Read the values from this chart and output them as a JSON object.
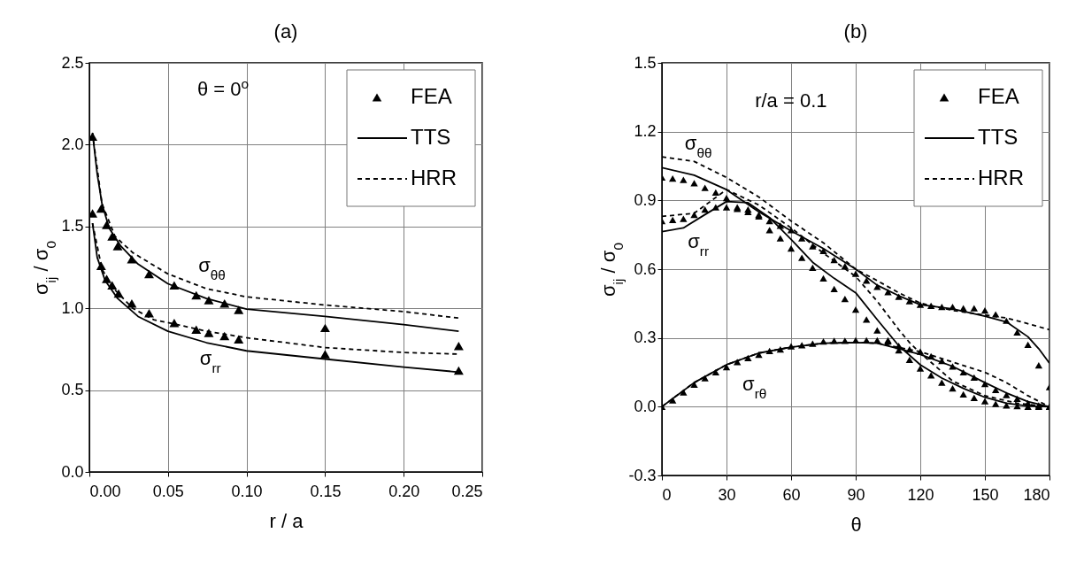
{
  "chart_data": [
    {
      "type": "line",
      "title": "(a)",
      "xlabel": "r / a",
      "ylabel": "σ$_{ij}$ / σ$_{0}$",
      "xlim": [
        0,
        0.25
      ],
      "ylim": [
        0,
        2.5
      ],
      "xticks": [
        {
          "value": 0,
          "label": "0.00"
        },
        {
          "value": 0.05,
          "label": "0.05"
        },
        {
          "value": 0.1,
          "label": "0.10"
        },
        {
          "value": 0.15,
          "label": "0.15"
        },
        {
          "value": 0.2,
          "label": "0.20"
        },
        {
          "value": 0.25,
          "label": "0.25"
        }
      ],
      "yticks": [
        {
          "value": 0,
          "label": "0.0"
        },
        0.5,
        {
          "value": 1,
          "label": "1.0"
        },
        1.5,
        {
          "value": 2,
          "label": "2.0"
        },
        2.5
      ],
      "grid": true,
      "legend": "top right",
      "annotations": [
        "θ = 0$^{o}$",
        "σ$_{θθ}$",
        "σ$_{rr}$"
      ],
      "series": [
        {
          "type": "scatter",
          "name": "FEA",
          "color": "#000000",
          "marker": "triangle",
          "x": [
            0.002,
            0.0075,
            0.011,
            0.0145,
            0.018,
            0.027,
            0.038,
            0.054,
            0.068,
            0.076,
            0.086,
            0.095,
            0.15,
            0.235,
            0.002,
            0.0075,
            0.011,
            0.0145,
            0.0186,
            0.027,
            0.038,
            0.054,
            0.068,
            0.076,
            0.086,
            0.095,
            0.15,
            0.235
          ],
          "values": [
            2.05,
            1.61,
            1.51,
            1.44,
            1.38,
            1.3,
            1.21,
            1.14,
            1.08,
            1.05,
            1.03,
            0.99,
            0.88,
            0.77,
            1.58,
            1.26,
            1.18,
            1.14,
            1.09,
            1.03,
            0.97,
            0.91,
            0.87,
            0.85,
            0.83,
            0.81,
            0.72,
            0.62
          ]
        },
        {
          "name": "TTS",
          "color": "#000000",
          "line_style": "solid",
          "x": [
            0.002,
            0.005,
            0.008,
            0.0126,
            0.02,
            0.031,
            0.05,
            0.0745,
            0.1,
            0.15,
            0.2,
            0.235
          ],
          "values": [
            2.07,
            1.82,
            1.64,
            1.49,
            1.38,
            1.27,
            1.15,
            1.06,
            0.995,
            0.95,
            0.9,
            0.86
          ]
        },
        {
          "name": "HRR",
          "color": "#000000",
          "line_style": "dashed",
          "x": [
            0.002,
            0.008,
            0.0163,
            0.0276,
            0.05,
            0.0745,
            0.1,
            0.15,
            0.2,
            0.235
          ],
          "values": [
            2.07,
            1.64,
            1.44,
            1.34,
            1.21,
            1.12,
            1.07,
            1.02,
            0.98,
            0.94
          ]
        },
        {
          "color": "#000000",
          "line_style": "solid",
          "x": [
            0.002,
            0.005,
            0.01,
            0.018,
            0.031,
            0.05,
            0.0745,
            0.1,
            0.15,
            0.2,
            0.235
          ],
          "values": [
            1.52,
            1.31,
            1.17,
            1.06,
            0.95,
            0.86,
            0.79,
            0.74,
            0.69,
            0.64,
            0.61
          ]
        },
        {
          "color": "#000000",
          "line_style": "dashed",
          "x": [
            0.002,
            0.008,
            0.0145,
            0.0276,
            0.041,
            0.056,
            0.0745,
            0.1,
            0.15,
            0.2,
            0.235
          ],
          "values": [
            1.52,
            1.24,
            1.13,
            1.0,
            0.93,
            0.9,
            0.86,
            0.82,
            0.76,
            0.73,
            0.72
          ]
        }
      ]
    },
    {
      "type": "line",
      "title": "(b)",
      "xlabel": "θ",
      "ylabel": "σ$_{ij}$ / σ$_{0}$",
      "xlim": [
        0,
        180
      ],
      "ylim": [
        -0.3,
        1.5
      ],
      "xticks": [
        0,
        30,
        60,
        90,
        120,
        150,
        180
      ],
      "yticks": [
        -0.3,
        {
          "value": 0,
          "label": "0.0"
        },
        0.3,
        0.6,
        0.9,
        1.2,
        1.5
      ],
      "grid": true,
      "legend": "top right",
      "x": [
        0,
        5,
        10,
        15,
        20,
        25,
        30,
        35,
        40,
        45,
        50,
        55,
        60,
        65,
        70,
        75,
        80,
        85,
        90,
        95,
        100,
        105,
        110,
        115,
        120,
        125,
        130,
        135,
        140,
        145,
        150,
        155,
        160,
        165,
        170,
        175,
        180
      ],
      "annotations": [
        "r/a = 0.1",
        "σ$_{θθ}$",
        "σ$_{rr}$",
        "σ$_{rθ}$"
      ],
      "series": [
        {
          "type": "scatter",
          "name": "FEA",
          "color": "#000000",
          "marker": "triangle",
          "values": [
            1.0,
            0.995,
            0.99,
            0.975,
            0.955,
            0.935,
            0.91,
            0.87,
            0.86,
            0.83,
            0.77,
            0.735,
            0.69,
            0.65,
            0.606,
            0.56,
            0.514,
            0.47,
            0.424,
            0.38,
            0.333,
            0.29,
            0.246,
            0.205,
            0.167,
            0.137,
            0.105,
            0.08,
            0.054,
            0.038,
            0.024,
            0.012,
            0.006,
            0.003,
            0,
            0,
            0
          ]
        },
        {
          "type": "scatter",
          "color": "#000000",
          "marker": "triangle",
          "values": [
            0.81,
            0.815,
            0.82,
            0.837,
            0.86,
            0.87,
            0.87,
            0.863,
            0.85,
            0.837,
            0.81,
            0.79,
            0.77,
            0.735,
            0.7,
            0.68,
            0.64,
            0.613,
            0.58,
            0.55,
            0.523,
            0.5,
            0.48,
            0.46,
            0.445,
            0.44,
            0.435,
            0.435,
            0.43,
            0.43,
            0.42,
            0.403,
            0.375,
            0.324,
            0.27,
            0.18,
            0.086
          ]
        },
        {
          "type": "scatter",
          "color": "#000000",
          "marker": "triangle",
          "values": [
            0,
            0.028,
            0.063,
            0.096,
            0.124,
            0.15,
            0.173,
            0.195,
            0.212,
            0.227,
            0.243,
            0.25,
            0.263,
            0.268,
            0.275,
            0.285,
            0.288,
            0.288,
            0.29,
            0.29,
            0.29,
            0.285,
            0.265,
            0.25,
            0.24,
            0.22,
            0.2,
            0.176,
            0.15,
            0.127,
            0.099,
            0.073,
            0.051,
            0.035,
            0.015,
            0.006,
            0
          ]
        },
        {
          "name": "TTS",
          "color": "#000000",
          "line_style": "solid",
          "x": [
            0,
            15,
            30,
            45,
            60,
            75,
            90,
            100,
            110,
            120,
            135,
            150,
            160,
            170,
            175,
            180
          ],
          "values": [
            1.043,
            1.01,
            0.947,
            0.85,
            0.767,
            0.69,
            0.6,
            0.53,
            0.484,
            0.445,
            0.427,
            0.395,
            0.37,
            0.305,
            0.253,
            0.19
          ]
        },
        {
          "name": "HRR",
          "color": "#000000",
          "line_style": "dashed",
          "x": [
            0,
            15,
            30,
            45,
            60,
            75,
            90,
            100,
            110,
            120,
            135,
            150,
            160,
            170,
            180
          ],
          "values": [
            1.09,
            1.07,
            1.0,
            0.915,
            0.81,
            0.715,
            0.6,
            0.55,
            0.497,
            0.452,
            0.42,
            0.4,
            0.387,
            0.362,
            0.336
          ]
        },
        {
          "color": "#000000",
          "line_style": "solid",
          "x": [
            0,
            10,
            20,
            30,
            40,
            50,
            60,
            70,
            80,
            90,
            100,
            110,
            120,
            130,
            140,
            150,
            160,
            170,
            180
          ],
          "values": [
            0.764,
            0.78,
            0.838,
            0.895,
            0.89,
            0.825,
            0.73,
            0.63,
            0.56,
            0.497,
            0.38,
            0.266,
            0.183,
            0.125,
            0.08,
            0.041,
            0.015,
            0.003,
            0
          ]
        },
        {
          "color": "#000000",
          "line_style": "dashed",
          "x": [
            0,
            15,
            30,
            45,
            60,
            75,
            90,
            100,
            110,
            115,
            120,
            135,
            150,
            165,
            180
          ],
          "values": [
            0.83,
            0.844,
            0.947,
            0.88,
            0.78,
            0.67,
            0.568,
            0.46,
            0.336,
            0.28,
            0.234,
            0.112,
            0.048,
            0.015,
            0
          ]
        },
        {
          "color": "#000000",
          "line_style": "solid",
          "x": [
            0,
            15,
            30,
            45,
            60,
            75,
            90,
            100,
            110,
            120,
            135,
            150,
            160,
            170,
            180
          ],
          "values": [
            0,
            0.105,
            0.183,
            0.234,
            0.26,
            0.277,
            0.28,
            0.277,
            0.253,
            0.228,
            0.176,
            0.105,
            0.06,
            0.022,
            0
          ]
        },
        {
          "color": "#000000",
          "line_style": "dashed",
          "x": [
            0,
            15,
            30,
            45,
            60,
            75,
            90,
            100,
            110,
            120,
            135,
            150,
            160,
            170,
            180
          ],
          "values": [
            0,
            0.105,
            0.183,
            0.234,
            0.26,
            0.277,
            0.28,
            0.277,
            0.258,
            0.24,
            0.195,
            0.15,
            0.105,
            0.048,
            0
          ]
        }
      ]
    }
  ]
}
